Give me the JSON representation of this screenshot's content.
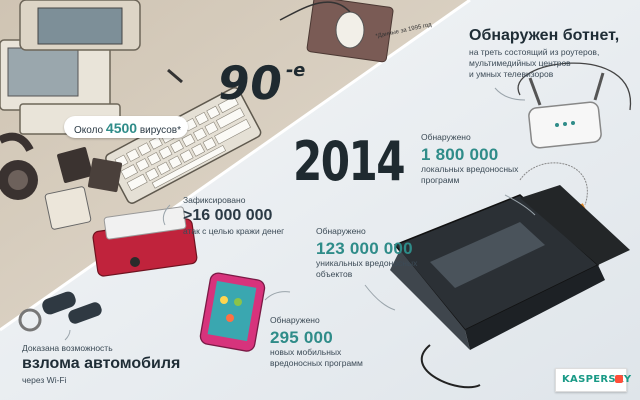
{
  "era_90s": {
    "title": "90",
    "title_suffix": "-е",
    "footnote": "*Данные за 1995 год",
    "virus_prefix": "Около",
    "virus_count": "4500",
    "virus_suffix": "вирусов*"
  },
  "year_2014": "2014",
  "botnet": {
    "headline": "Обнаружен ботнет,",
    "line1": "на треть состоящий из роутеров,",
    "line2": "мультимедийных центров",
    "line3": "и умных телевизоров"
  },
  "local_malware": {
    "label": "Обнаружено",
    "value": "1 800 000",
    "line1": "локальных вредоносных",
    "line2": "программ"
  },
  "theft_attacks": {
    "label": "Зафиксировано",
    "value": ">16 000 000",
    "line1": "атак с целью кражи денег"
  },
  "unique_malware": {
    "label": "Обнаружено",
    "value": "123 000 000",
    "line1": "уникальных вредоносных",
    "line2": "объектов"
  },
  "mobile_malware": {
    "label": "Обнаружено",
    "value": "295 000",
    "line1": "новых мобильных",
    "line2": "вредоносных программ"
  },
  "car": {
    "label": "Доказана возможность",
    "headline": "взлома автомобиля",
    "line1": "через Wi-Fi"
  },
  "brand": {
    "logo_text": "KASPERSKY",
    "logo_suffix": "lab"
  },
  "colors": {
    "accent_teal": "#2f8c89",
    "dark": "#1f2a30",
    "upper_bg": "#d9cfc0",
    "lower_bg": "#eef1f4"
  }
}
